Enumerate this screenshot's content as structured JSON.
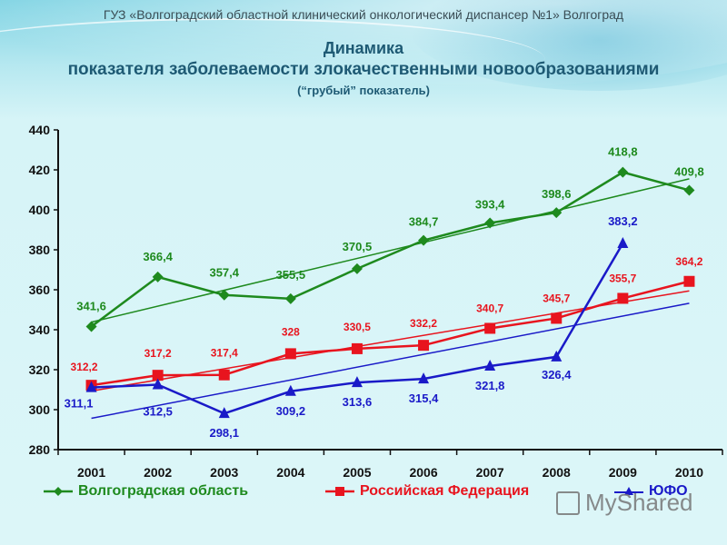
{
  "header": {
    "organization": "ГУЗ «Волгоградский областной клинический онкологический диспансер №1» Волгоград",
    "title_line1": "Динамика",
    "title_line2": "показателя заболеваемости злокачественными новообразованиями",
    "subtitle": "(“грубый” показатель)"
  },
  "legend": {
    "volgograd": "Волгоградская область",
    "russia": "Российская Федерация",
    "yufo": "ЮФО"
  },
  "watermark": "MyShared",
  "colors": {
    "volgograd": "#1e8a1e",
    "russia": "#e8141e",
    "yufo": "#1a1ac8",
    "axis": "#111111"
  },
  "chart_data": {
    "type": "line",
    "title": "Динамика показателя заболеваемости злокачественными новообразованиями (“грубый” показатель)",
    "xlabel": "",
    "ylabel": "",
    "categories": [
      "2001",
      "2002",
      "2003",
      "2004",
      "2005",
      "2006",
      "2007",
      "2008",
      "2009",
      "2010"
    ],
    "ylim": [
      280,
      440
    ],
    "yticks": [
      280,
      300,
      320,
      340,
      360,
      380,
      400,
      420,
      440
    ],
    "grid": false,
    "legend_position": "bottom",
    "series": [
      {
        "name": "Волгоградская область",
        "color": "#1e8a1e",
        "marker": "diamond",
        "values": [
          341.6,
          366.4,
          357.4,
          355.5,
          370.5,
          384.7,
          393.4,
          398.6,
          418.8,
          409.8
        ],
        "labels": [
          "341,6",
          "366,4",
          "357,4",
          "355,5",
          "370,5",
          "384,7",
          "393,4",
          "398,6",
          "418,8",
          "409,8"
        ],
        "trendline": true
      },
      {
        "name": "Российская Федерация",
        "color": "#e8141e",
        "marker": "square",
        "values": [
          312.2,
          317.2,
          317.4,
          328,
          330.5,
          332.2,
          340.7,
          345.7,
          355.7,
          364.2
        ],
        "labels": [
          "312,2",
          "317,2",
          "317,4",
          "328",
          "330,5",
          "332,2",
          "340,7",
          "345,7",
          "355,7",
          "364,2"
        ],
        "trendline": true
      },
      {
        "name": "ЮФО",
        "color": "#1a1ac8",
        "marker": "triangle",
        "values": [
          311.1,
          312.5,
          298.1,
          309.2,
          313.6,
          315.4,
          321.8,
          326.4,
          383.2,
          null
        ],
        "labels": [
          "311,1",
          "312,5",
          "298,1",
          "309,2",
          "313,6",
          "315,4",
          "321,8",
          "326,4",
          "383,2",
          ""
        ],
        "trendline": true
      }
    ]
  }
}
